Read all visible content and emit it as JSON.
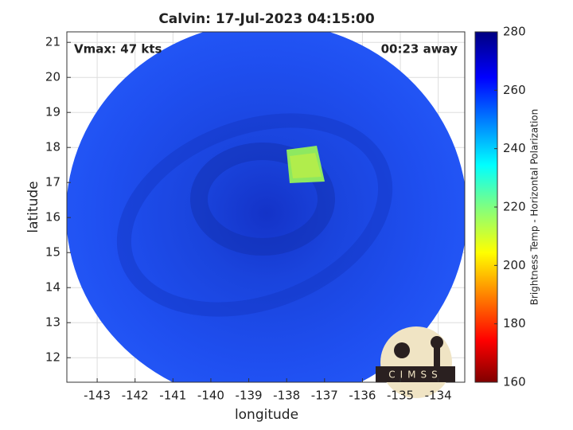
{
  "chart_data": {
    "type": "image",
    "title": "Calvin: 17-Jul-2023 04:15:00",
    "xlabel": "longitude",
    "ylabel": "latitude",
    "xlim": [
      -143.8,
      -133.3
    ],
    "ylim": [
      11.3,
      21.3
    ],
    "xticks": [
      -143,
      -142,
      -141,
      -140,
      -139,
      -138,
      -137,
      -136,
      -135,
      -134
    ],
    "yticks": [
      12,
      13,
      14,
      15,
      16,
      17,
      18,
      19,
      20,
      21
    ],
    "grid": true,
    "annotations": [
      "Vmax: 47 kts",
      "00:23 away"
    ],
    "colorbar": {
      "label": "Brightness Temp - Horizontal Polarization",
      "lim": [
        160,
        280
      ],
      "ticks": [
        160,
        180,
        200,
        220,
        240,
        260,
        280
      ]
    },
    "logo": "CIMSS"
  }
}
